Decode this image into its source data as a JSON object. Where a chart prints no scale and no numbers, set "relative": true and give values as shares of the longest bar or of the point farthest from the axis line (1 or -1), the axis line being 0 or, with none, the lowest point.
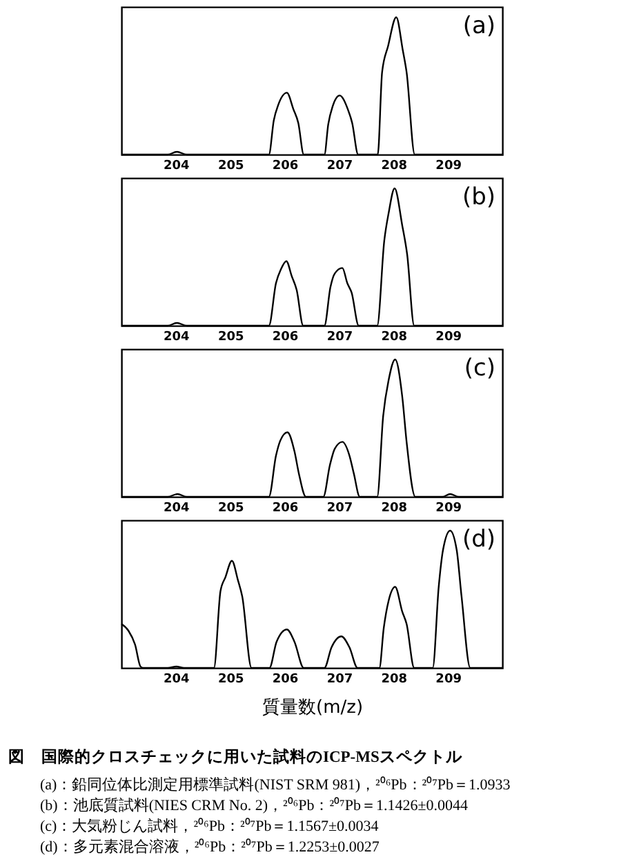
{
  "chart_data": [
    {
      "type": "line",
      "title": "(a)",
      "relative": true,
      "color": "#000000",
      "line_style": "solid",
      "xlim": [
        203,
        210
      ],
      "xticks": [
        204,
        205,
        206,
        207,
        208,
        209
      ],
      "x": [
        203.0,
        203.85,
        204.02,
        204.2,
        205.71,
        205.8,
        205.88,
        206.04,
        206.16,
        206.25,
        206.35,
        206.73,
        206.8,
        206.88,
        207.01,
        207.16,
        207.24,
        207.35,
        207.71,
        207.79,
        207.9,
        208.05,
        208.17,
        208.24,
        208.39,
        210.0
      ],
      "values": [
        0,
        0,
        0.02,
        0,
        0,
        0.25,
        0.36,
        0.45,
        0.33,
        0.23,
        0,
        0,
        0.22,
        0.35,
        0.43,
        0.33,
        0.23,
        0,
        0,
        0.6,
        0.79,
        1.0,
        0.76,
        0.6,
        0,
        0
      ]
    },
    {
      "type": "line",
      "title": "(b)",
      "relative": true,
      "color": "#000000",
      "line_style": "solid",
      "xlim": [
        203,
        210
      ],
      "xticks": [
        204,
        205,
        206,
        207,
        208,
        209
      ],
      "x": [
        203.0,
        203.85,
        204.02,
        204.2,
        205.71,
        205.84,
        205.93,
        206.03,
        206.13,
        206.22,
        206.34,
        206.73,
        206.84,
        206.92,
        207.06,
        207.15,
        207.23,
        207.36,
        207.7,
        207.83,
        207.91,
        208.02,
        208.16,
        208.25,
        208.38,
        210.0
      ],
      "values": [
        0,
        0,
        0.02,
        0,
        0,
        0.31,
        0.41,
        0.47,
        0.36,
        0.26,
        0,
        0,
        0.28,
        0.38,
        0.42,
        0.31,
        0.24,
        0,
        0,
        0.62,
        0.82,
        1.0,
        0.73,
        0.52,
        0,
        0
      ]
    },
    {
      "type": "line",
      "title": "(c)",
      "relative": true,
      "color": "#000000",
      "line_style": "solid",
      "xlim": [
        203,
        210
      ],
      "xticks": [
        204,
        205,
        206,
        207,
        208,
        209
      ],
      "x": [
        203.0,
        203.85,
        204.03,
        204.2,
        205.71,
        205.84,
        205.92,
        206.05,
        206.18,
        206.26,
        206.39,
        206.71,
        206.83,
        206.92,
        207.06,
        207.19,
        207.27,
        207.38,
        207.7,
        207.81,
        207.91,
        208.03,
        208.16,
        208.24,
        208.4,
        208.9,
        209.04,
        209.2,
        210.0
      ],
      "values": [
        0,
        0,
        0.02,
        0,
        0,
        0.3,
        0.41,
        0.47,
        0.33,
        0.17,
        0,
        0,
        0.23,
        0.35,
        0.4,
        0.3,
        0.17,
        0,
        0,
        0.59,
        0.85,
        1.0,
        0.73,
        0.4,
        0,
        0,
        0.02,
        0,
        0
      ]
    },
    {
      "type": "line",
      "title": "(d)",
      "relative": true,
      "color": "#000000",
      "line_style": "solid",
      "xlim": [
        203,
        210
      ],
      "xticks": [
        204,
        205,
        206,
        207,
        208,
        209
      ],
      "xlabel": "質量数(m/z)",
      "x": [
        203.0,
        203.13,
        203.25,
        203.35,
        203.4,
        203.85,
        204.01,
        204.15,
        204.7,
        204.82,
        204.91,
        205.03,
        205.14,
        205.22,
        205.39,
        205.72,
        205.85,
        206.04,
        206.18,
        206.35,
        206.73,
        206.86,
        207.04,
        207.19,
        207.34,
        207.74,
        207.82,
        207.91,
        208.03,
        208.16,
        208.24,
        208.38,
        208.72,
        208.83,
        208.91,
        209.04,
        209.16,
        209.25,
        209.41,
        210.0
      ],
      "values": [
        0.32,
        0.27,
        0.17,
        0.01,
        0,
        0,
        0.01,
        0,
        0,
        0.56,
        0.66,
        0.78,
        0.64,
        0.52,
        0,
        0,
        0.19,
        0.28,
        0.19,
        0,
        0,
        0.15,
        0.23,
        0.15,
        0,
        0,
        0.29,
        0.49,
        0.59,
        0.41,
        0.32,
        0,
        0,
        0.59,
        0.86,
        1.0,
        0.86,
        0.52,
        0,
        0
      ],
      "annotations": [
        "図　国際的クロスチェックに用いた試料のICP-MSスペクトル",
        "(a)：鉛同位体比測定用標準試料(NIST SRM 981)，²⁰⁶Pb：²⁰⁷Pb＝1.0933",
        "(b)：池底質試料(NIES CRM No. 2)，²⁰⁶Pb：²⁰⁷Pb＝1.1426±0.0044",
        "(c)：大気粉じん試料，²⁰⁶Pb：²⁰⁷Pb＝1.1567±0.0034",
        "(d)：多元素混合溶液，²⁰⁶Pb：²⁰⁷Pb＝1.2253±0.0027"
      ]
    }
  ]
}
